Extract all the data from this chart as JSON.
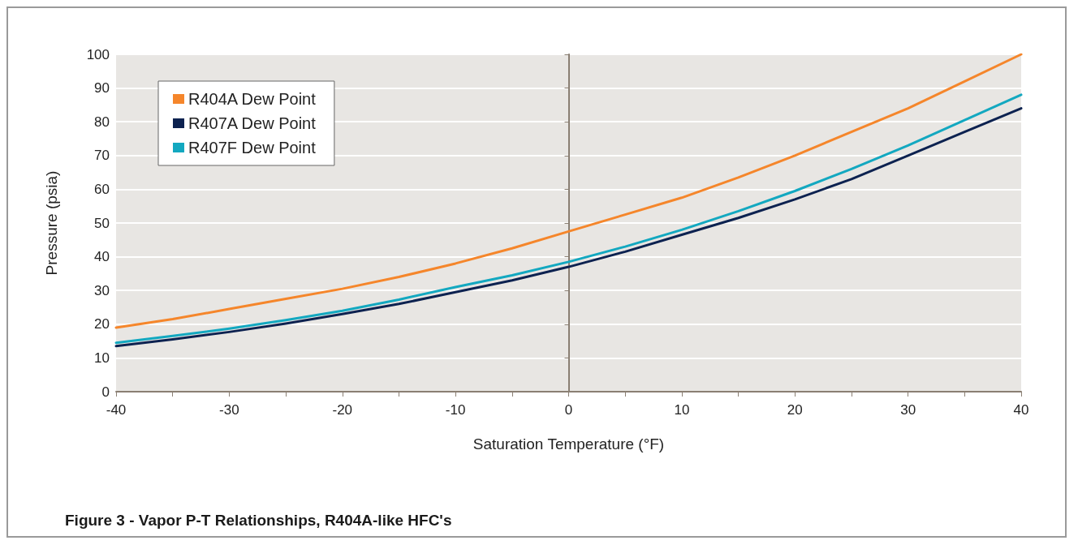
{
  "chart_data": {
    "type": "line",
    "xlabel": "Saturation Temperature (°F)",
    "ylabel": "Pressure (psia)",
    "x": [
      -40,
      -35,
      -30,
      -25,
      -20,
      -15,
      -10,
      -5,
      0,
      5,
      10,
      15,
      20,
      25,
      30,
      35,
      40
    ],
    "series": [
      {
        "name": "R404A Dew Point",
        "color": "#f5862b",
        "values": [
          19,
          21.5,
          24.5,
          27.5,
          30.5,
          34,
          38,
          42.5,
          47.5,
          52.5,
          57.5,
          63.5,
          70,
          77,
          84,
          92,
          100
        ]
      },
      {
        "name": "R407A Dew Point",
        "color": "#0d2250",
        "values": [
          13.5,
          15.5,
          17.7,
          20.2,
          23,
          26,
          29.5,
          33,
          37,
          41.5,
          46.5,
          51.5,
          57,
          63,
          70,
          77,
          84
        ]
      },
      {
        "name": "R407F Dew Point",
        "color": "#13a8c0",
        "values": [
          14.5,
          16.5,
          18.7,
          21.2,
          24,
          27.3,
          31,
          34.5,
          38.5,
          43,
          48,
          53.5,
          59.5,
          66,
          73,
          80.5,
          88
        ]
      }
    ],
    "xlim": [
      -40,
      40
    ],
    "xticks": [
      -40,
      {
        "value": -35,
        "label": null
      },
      -30,
      {
        "value": -25,
        "label": null
      },
      -20,
      {
        "value": -15,
        "label": null
      },
      -10,
      {
        "value": -5,
        "label": null
      },
      0,
      {
        "value": 5,
        "label": null
      },
      10,
      {
        "value": 15,
        "label": null
      },
      20,
      {
        "value": 25,
        "label": null
      },
      30,
      {
        "value": 35,
        "label": null
      },
      40
    ],
    "ylim": [
      0,
      100
    ],
    "yticks": [
      0,
      10,
      20,
      30,
      40,
      50,
      60,
      70,
      80,
      90,
      100
    ],
    "grid": "y",
    "legend": "top left",
    "marker": "none",
    "line_style": "solid",
    "annotations": [
      "Figure 3 - Vapor P-T Relationships, R404A-like HFC's"
    ]
  }
}
